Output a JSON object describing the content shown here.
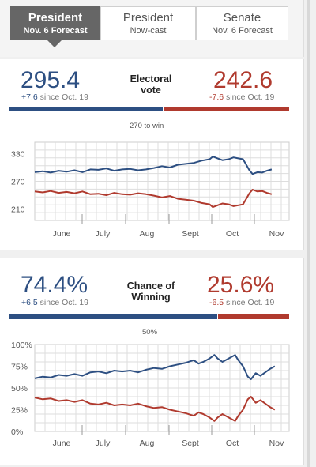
{
  "tabs": [
    {
      "title": "President",
      "subtitle": "Nov. 6 Forecast",
      "active": true
    },
    {
      "title": "President",
      "subtitle": "Now-cast",
      "active": false
    },
    {
      "title": "Senate",
      "subtitle": "Nov. 6 Forecast",
      "active": false
    }
  ],
  "electoral": {
    "label_line1": "Electoral",
    "label_line2": "vote",
    "dem_value": "295.4",
    "dem_change": "+7.6",
    "dem_since": " since Oct. 19",
    "rep_value": "242.6",
    "rep_change": "-7.6",
    "rep_since": " since Oct. 19",
    "threshold_label": "270 to win",
    "dem_share": 0.549
  },
  "chance": {
    "label_line1": "Chance of",
    "label_line2": "Winning",
    "dem_value": "74.4%",
    "dem_change": "+6.5",
    "dem_since": " since Oct. 19",
    "rep_value": "25.6%",
    "rep_change": "-6.5",
    "rep_since": " since Oct. 19",
    "threshold_label": "50%",
    "dem_share": 0.744
  },
  "colors": {
    "dem": "#2d4f82",
    "rep": "#b03a2e",
    "grid": "#dddddd"
  },
  "chart_data": [
    {
      "type": "line",
      "title": "",
      "x": [
        "June",
        "July",
        "Aug",
        "Sept",
        "Oct",
        "Nov"
      ],
      "ytick_labels": [
        "330",
        "270",
        "210"
      ],
      "yticks": [
        330,
        270,
        210
      ],
      "ylim": [
        185,
        355
      ],
      "xlim": [
        0,
        160
      ],
      "grid": true,
      "series": [
        {
          "color": "#2d4f82",
          "values": [
            [
              0,
              290
            ],
            [
              5,
              292
            ],
            [
              10,
              289
            ],
            [
              15,
              293
            ],
            [
              20,
              291
            ],
            [
              25,
              294
            ],
            [
              30,
              290
            ],
            [
              35,
              296
            ],
            [
              40,
              295
            ],
            [
              45,
              298
            ],
            [
              50,
              293
            ],
            [
              55,
              296
            ],
            [
              60,
              297
            ],
            [
              65,
              294
            ],
            [
              70,
              296
            ],
            [
              75,
              299
            ],
            [
              80,
              303
            ],
            [
              85,
              300
            ],
            [
              90,
              306
            ],
            [
              95,
              308
            ],
            [
              100,
              310
            ],
            [
              105,
              315
            ],
            [
              110,
              318
            ],
            [
              112,
              324
            ],
            [
              115,
              320
            ],
            [
              118,
              316
            ],
            [
              122,
              318
            ],
            [
              125,
              322
            ],
            [
              128,
              320
            ],
            [
              131,
              318
            ],
            [
              133,
              306
            ],
            [
              135,
              294
            ],
            [
              137,
              286
            ],
            [
              140,
              290
            ],
            [
              143,
              289
            ],
            [
              146,
              293
            ],
            [
              149,
              296
            ]
          ]
        },
        {
          "color": "#b03a2e",
          "values": [
            [
              0,
              248
            ],
            [
              5,
              246
            ],
            [
              10,
              249
            ],
            [
              15,
              245
            ],
            [
              20,
              247
            ],
            [
              25,
              244
            ],
            [
              30,
              248
            ],
            [
              35,
              242
            ],
            [
              40,
              243
            ],
            [
              45,
              240
            ],
            [
              50,
              245
            ],
            [
              55,
              242
            ],
            [
              60,
              241
            ],
            [
              65,
              244
            ],
            [
              70,
              242
            ],
            [
              75,
              239
            ],
            [
              80,
              235
            ],
            [
              85,
              238
            ],
            [
              90,
              232
            ],
            [
              95,
              230
            ],
            [
              100,
              228
            ],
            [
              105,
              223
            ],
            [
              110,
              220
            ],
            [
              112,
              214
            ],
            [
              115,
              218
            ],
            [
              118,
              222
            ],
            [
              122,
              220
            ],
            [
              125,
              216
            ],
            [
              128,
              218
            ],
            [
              131,
              220
            ],
            [
              133,
              232
            ],
            [
              135,
              244
            ],
            [
              137,
              252
            ],
            [
              140,
              248
            ],
            [
              143,
              249
            ],
            [
              146,
              245
            ],
            [
              149,
              242
            ]
          ]
        }
      ]
    },
    {
      "type": "line",
      "title": "",
      "x": [
        "June",
        "July",
        "Aug",
        "Sept",
        "Oct",
        "Nov"
      ],
      "ytick_labels": [
        "100%",
        "75%",
        "50%",
        "25%",
        "0%"
      ],
      "yticks": [
        100,
        75,
        50,
        25,
        0
      ],
      "ylim": [
        0,
        100
      ],
      "xlim": [
        0,
        160
      ],
      "grid": true,
      "series": [
        {
          "color": "#2d4f82",
          "values": [
            [
              0,
              61
            ],
            [
              5,
              63
            ],
            [
              10,
              62
            ],
            [
              15,
              65
            ],
            [
              20,
              64
            ],
            [
              25,
              66
            ],
            [
              30,
              64
            ],
            [
              35,
              68
            ],
            [
              40,
              69
            ],
            [
              45,
              67
            ],
            [
              50,
              70
            ],
            [
              55,
              69
            ],
            [
              60,
              70
            ],
            [
              65,
              68
            ],
            [
              70,
              71
            ],
            [
              75,
              73
            ],
            [
              80,
              72
            ],
            [
              85,
              75
            ],
            [
              90,
              77
            ],
            [
              95,
              79
            ],
            [
              100,
              82
            ],
            [
              103,
              78
            ],
            [
              106,
              80
            ],
            [
              110,
              84
            ],
            [
              113,
              88
            ],
            [
              115,
              84
            ],
            [
              118,
              80
            ],
            [
              121,
              83
            ],
            [
              124,
              86
            ],
            [
              126,
              88
            ],
            [
              128,
              82
            ],
            [
              131,
              75
            ],
            [
              134,
              63
            ],
            [
              136,
              60
            ],
            [
              139,
              67
            ],
            [
              142,
              64
            ],
            [
              145,
              68
            ],
            [
              148,
              72
            ],
            [
              151,
              75
            ]
          ]
        },
        {
          "color": "#b03a2e",
          "values": [
            [
              0,
              39
            ],
            [
              5,
              37
            ],
            [
              10,
              38
            ],
            [
              15,
              35
            ],
            [
              20,
              36
            ],
            [
              25,
              34
            ],
            [
              30,
              36
            ],
            [
              35,
              32
            ],
            [
              40,
              31
            ],
            [
              45,
              33
            ],
            [
              50,
              30
            ],
            [
              55,
              31
            ],
            [
              60,
              30
            ],
            [
              65,
              32
            ],
            [
              70,
              29
            ],
            [
              75,
              27
            ],
            [
              80,
              28
            ],
            [
              85,
              25
            ],
            [
              90,
              23
            ],
            [
              95,
              21
            ],
            [
              100,
              18
            ],
            [
              103,
              22
            ],
            [
              106,
              20
            ],
            [
              110,
              16
            ],
            [
              113,
              12
            ],
            [
              115,
              16
            ],
            [
              118,
              20
            ],
            [
              121,
              17
            ],
            [
              124,
              14
            ],
            [
              126,
              12
            ],
            [
              128,
              18
            ],
            [
              131,
              25
            ],
            [
              134,
              37
            ],
            [
              136,
              40
            ],
            [
              139,
              33
            ],
            [
              142,
              36
            ],
            [
              145,
              32
            ],
            [
              148,
              28
            ],
            [
              151,
              25
            ]
          ]
        }
      ]
    }
  ]
}
